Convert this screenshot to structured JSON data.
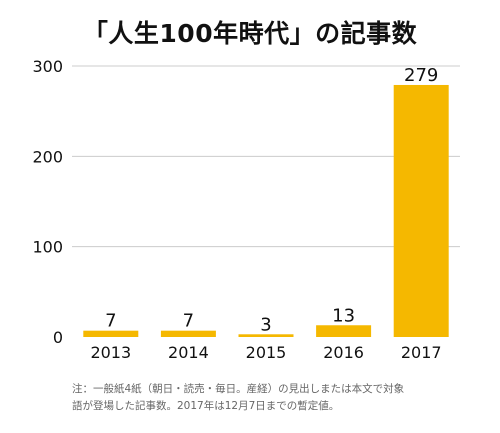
{
  "chart_data": {
    "type": "bar",
    "title": "「人生100年時代」の記事数",
    "categories": [
      "2013",
      "2014",
      "2015",
      "2016",
      "2017"
    ],
    "values": [
      7,
      7,
      3,
      13,
      279
    ],
    "data_labels": [
      "7",
      "7",
      "3",
      "13",
      "279"
    ],
    "ylim": [
      0,
      300
    ],
    "yticks": [
      0,
      100,
      200,
      300
    ],
    "ytick_labels": [
      "0",
      "100",
      "200",
      "300"
    ],
    "xlabel": "",
    "ylabel": "",
    "grid": true,
    "bar_color": "#F5B800",
    "grid_color": "#cccccc"
  },
  "note": {
    "line1": "注：一般紙4紙（朝日・読売・毎日。産経）の見出しまたは本文で対象",
    "line2": "語が登場した記事数。2017年は12月7日までの暫定値。"
  }
}
